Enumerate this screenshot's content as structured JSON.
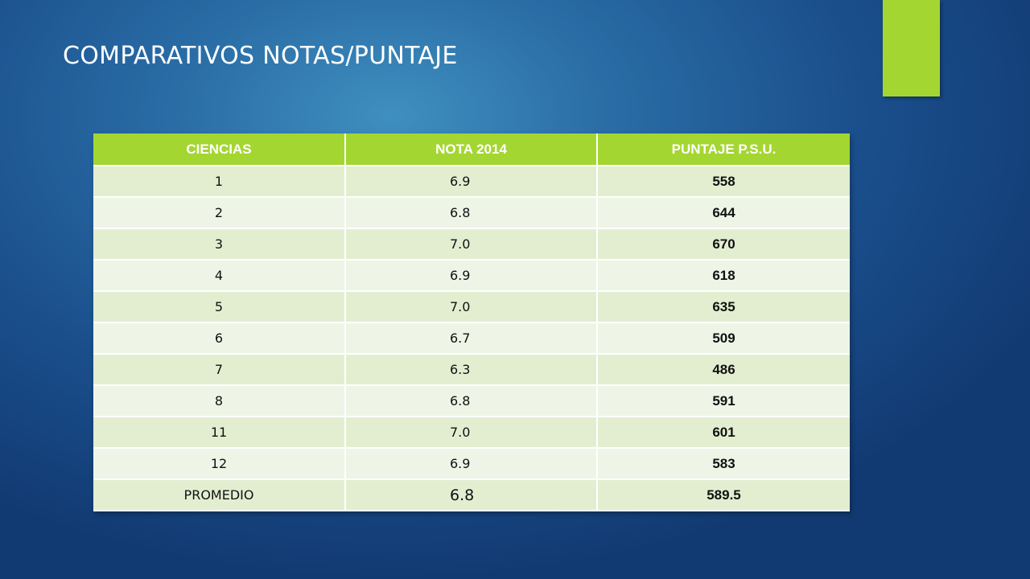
{
  "slide": {
    "title": "COMPARATIVOS NOTAS/PUNTAJE"
  },
  "colors": {
    "accent": "#a4d631",
    "background": "#1a4f8c",
    "row_light": "#eef5e6",
    "row_dark": "#e3eed1"
  },
  "table": {
    "headers": [
      "CIENCIAS",
      "NOTA 2014",
      "PUNTAJE P.S.U."
    ],
    "rows": [
      {
        "ciencias": "1",
        "nota": "6.9",
        "puntaje": "558"
      },
      {
        "ciencias": "2",
        "nota": "6.8",
        "puntaje": "644"
      },
      {
        "ciencias": "3",
        "nota": "7.0",
        "puntaje": "670"
      },
      {
        "ciencias": "4",
        "nota": "6.9",
        "puntaje": "618"
      },
      {
        "ciencias": "5",
        "nota": "7.0",
        "puntaje": "635"
      },
      {
        "ciencias": "6",
        "nota": "6.7",
        "puntaje": "509"
      },
      {
        "ciencias": "7",
        "nota": "6.3",
        "puntaje": "486"
      },
      {
        "ciencias": "8",
        "nota": "6.8",
        "puntaje": "591"
      },
      {
        "ciencias": "11",
        "nota": "7.0",
        "puntaje": "601"
      },
      {
        "ciencias": "12",
        "nota": "6.9",
        "puntaje": "583"
      },
      {
        "ciencias": "PROMEDIO",
        "nota": "6.8",
        "puntaje": "589.5"
      }
    ]
  }
}
